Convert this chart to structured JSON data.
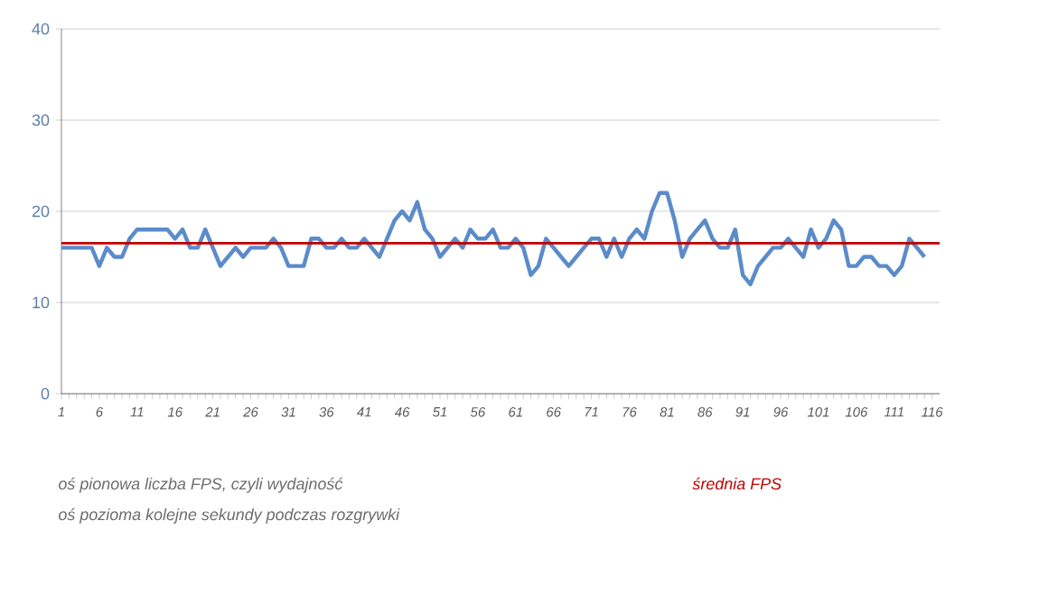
{
  "chart_data": {
    "type": "line",
    "x": [
      1,
      2,
      3,
      4,
      5,
      6,
      7,
      8,
      9,
      10,
      11,
      12,
      13,
      14,
      15,
      16,
      17,
      18,
      19,
      20,
      21,
      22,
      23,
      24,
      25,
      26,
      27,
      28,
      29,
      30,
      31,
      32,
      33,
      34,
      35,
      36,
      37,
      38,
      39,
      40,
      41,
      42,
      43,
      44,
      45,
      46,
      47,
      48,
      49,
      50,
      51,
      52,
      53,
      54,
      55,
      56,
      57,
      58,
      59,
      60,
      61,
      62,
      63,
      64,
      65,
      66,
      67,
      68,
      69,
      70,
      71,
      72,
      73,
      74,
      75,
      76,
      77,
      78,
      79,
      80,
      81,
      82,
      83,
      84,
      85,
      86,
      87,
      88,
      89,
      90,
      91,
      92,
      93,
      94,
      95,
      96,
      97,
      98,
      99,
      100,
      101,
      102,
      103,
      104,
      105,
      106,
      107,
      108,
      109,
      110,
      111,
      112,
      113,
      114,
      115
    ],
    "series": [
      {
        "color": "#5b8bc9",
        "values": [
          16,
          16,
          16,
          16,
          16,
          14,
          16,
          15,
          15,
          17,
          18,
          18,
          18,
          18,
          18,
          17,
          18,
          16,
          16,
          18,
          16,
          14,
          15,
          16,
          15,
          16,
          16,
          16,
          17,
          16,
          14,
          14,
          14,
          17,
          17,
          16,
          16,
          17,
          16,
          16,
          17,
          16,
          15,
          17,
          19,
          20,
          19,
          21,
          18,
          17,
          15,
          16,
          17,
          16,
          18,
          17,
          17,
          18,
          16,
          16,
          17,
          16,
          13,
          14,
          17,
          16,
          15,
          14,
          15,
          16,
          17,
          17,
          15,
          17,
          15,
          17,
          18,
          17,
          20,
          22,
          22,
          19,
          15,
          17,
          18,
          19,
          17,
          16,
          16,
          18,
          13,
          12,
          14,
          15,
          16,
          16,
          17,
          16,
          15,
          18,
          16,
          17,
          19,
          18,
          14,
          14,
          15,
          15,
          14,
          14,
          13,
          14,
          17,
          16,
          15
        ]
      }
    ],
    "xlim": [
      1,
      117
    ],
    "xticks": [
      1,
      6,
      11,
      16,
      21,
      26,
      31,
      36,
      41,
      46,
      51,
      56,
      61,
      66,
      71,
      76,
      81,
      86,
      91,
      96,
      101,
      106,
      111,
      116
    ],
    "ylim": [
      0,
      40
    ],
    "yticks": [
      0,
      10,
      20,
      30,
      40
    ],
    "grid": "y",
    "marker": "none",
    "line_style": "solid",
    "ref_lines": [
      {
        "axis": "y",
        "value": 16.5,
        "label": "średnia FPS",
        "color": "#c00000"
      }
    ],
    "annotations": [
      "oś pionowa liczba FPS, czyli wydajność",
      "oś pozioma kolejne sekundy podczas rozgrywki"
    ]
  }
}
